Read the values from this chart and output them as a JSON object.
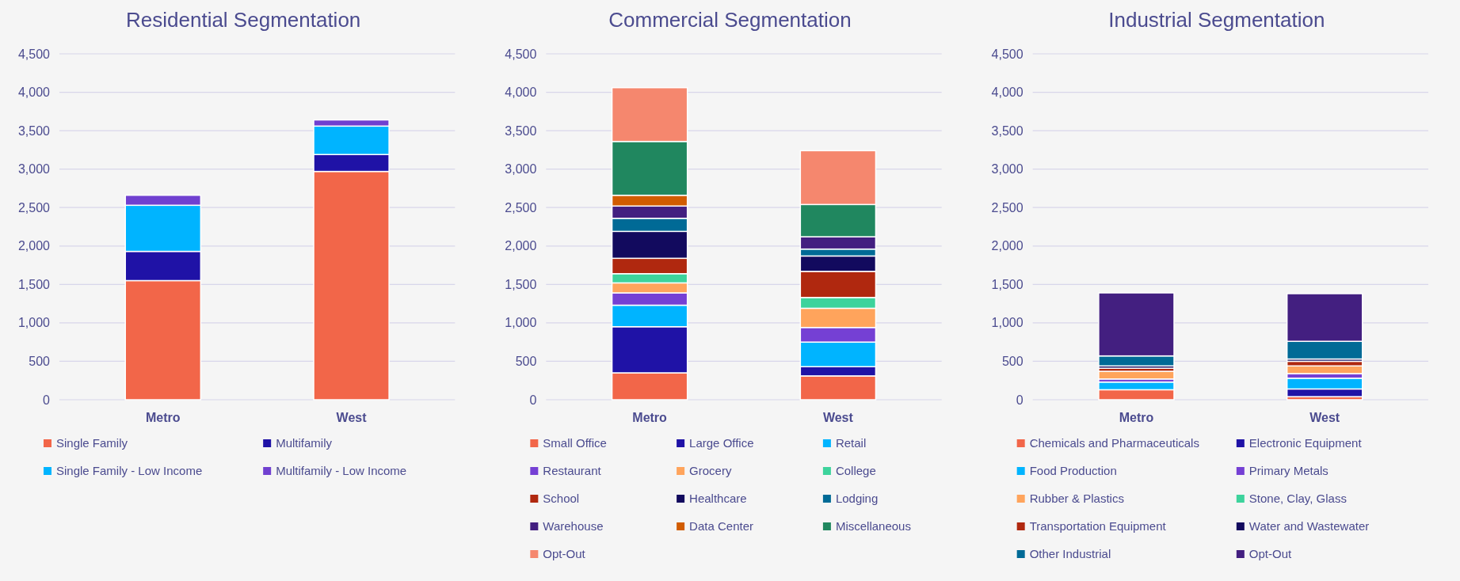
{
  "chart_data": [
    {
      "type": "bar",
      "title": "Residential Segmentation",
      "categories": [
        "Metro",
        "West"
      ],
      "stacked": true,
      "ylim": [
        0,
        4500
      ],
      "yticks": [
        {
          "value": 0,
          "label": "0"
        },
        {
          "value": 500,
          "label": "500"
        },
        {
          "value": 1000,
          "label": "1,000"
        },
        {
          "value": 1500,
          "label": "1,500"
        },
        {
          "value": 2000,
          "label": "2,000"
        },
        {
          "value": 2500,
          "label": "2,500"
        },
        {
          "value": 3000,
          "label": "3,000"
        },
        {
          "value": 3500,
          "label": "3,500"
        },
        {
          "value": 4000,
          "label": "4,000"
        },
        {
          "value": 4500,
          "label": "4,500"
        }
      ],
      "grid": "y",
      "legend": "bottom",
      "series": [
        {
          "name": "Single Family",
          "color": "#f26649",
          "values": [
            1550,
            2970
          ]
        },
        {
          "name": "Multifamily",
          "color": "#1f12a6",
          "values": [
            380,
            220
          ]
        },
        {
          "name": "Single Family - Low Income",
          "color": "#00b4ff",
          "values": [
            600,
            370
          ]
        },
        {
          "name": "Multifamily - Low Income",
          "color": "#7040d0",
          "values": [
            130,
            80
          ]
        }
      ]
    },
    {
      "type": "bar",
      "title": "Commercial Segmentation",
      "categories": [
        "Metro",
        "West"
      ],
      "stacked": true,
      "ylim": [
        0,
        4500
      ],
      "yticks": [
        {
          "value": 0,
          "label": "0"
        },
        {
          "value": 500,
          "label": "500"
        },
        {
          "value": 1000,
          "label": "1,000"
        },
        {
          "value": 1500,
          "label": "1,500"
        },
        {
          "value": 2000,
          "label": "2,000"
        },
        {
          "value": 2500,
          "label": "2,500"
        },
        {
          "value": 3000,
          "label": "3,000"
        },
        {
          "value": 3500,
          "label": "3,500"
        },
        {
          "value": 4000,
          "label": "4,000"
        },
        {
          "value": 4500,
          "label": "4,500"
        }
      ],
      "grid": "y",
      "legend": "bottom",
      "series": [
        {
          "name": "Small Office",
          "color": "#f26649",
          "values": [
            350,
            310
          ]
        },
        {
          "name": "Large Office",
          "color": "#1f12a6",
          "values": [
            600,
            120
          ]
        },
        {
          "name": "Retail",
          "color": "#00b4ff",
          "values": [
            280,
            320
          ]
        },
        {
          "name": "Restaurant",
          "color": "#7540d4",
          "values": [
            160,
            190
          ]
        },
        {
          "name": "Grocery",
          "color": "#ffa45c",
          "values": [
            130,
            250
          ]
        },
        {
          "name": "College",
          "color": "#3dd39c",
          "values": [
            120,
            140
          ]
        },
        {
          "name": "School",
          "color": "#b0280f",
          "values": [
            200,
            340
          ]
        },
        {
          "name": "Healthcare",
          "color": "#120a5e",
          "values": [
            350,
            200
          ]
        },
        {
          "name": "Lodging",
          "color": "#006a96",
          "values": [
            170,
            90
          ]
        },
        {
          "name": "Warehouse",
          "color": "#431f80",
          "values": [
            160,
            160
          ]
        },
        {
          "name": "Data Center",
          "color": "#d15c00",
          "values": [
            140,
            0
          ]
        },
        {
          "name": "Miscellaneous",
          "color": "#20875f",
          "values": [
            700,
            420
          ]
        },
        {
          "name": "Opt-Out",
          "color": "#f5876e",
          "values": [
            700,
            700
          ]
        }
      ]
    },
    {
      "type": "bar",
      "title": "Industrial Segmentation",
      "categories": [
        "Metro",
        "West"
      ],
      "stacked": true,
      "ylim": [
        0,
        4500
      ],
      "yticks": [
        {
          "value": 0,
          "label": "0"
        },
        {
          "value": 500,
          "label": "500"
        },
        {
          "value": 1000,
          "label": "1,000"
        },
        {
          "value": 1500,
          "label": "1,500"
        },
        {
          "value": 2000,
          "label": "2,000"
        },
        {
          "value": 2500,
          "label": "2,500"
        },
        {
          "value": 3000,
          "label": "3,000"
        },
        {
          "value": 3500,
          "label": "3,500"
        },
        {
          "value": 4000,
          "label": "4,000"
        },
        {
          "value": 4500,
          "label": "4,500"
        }
      ],
      "grid": "y",
      "legend": "bottom",
      "series": [
        {
          "name": "Chemicals and Pharmaceuticals",
          "color": "#f26649",
          "values": [
            130,
            40
          ]
        },
        {
          "name": "Electronic Equipment",
          "color": "#1f12a6",
          "values": [
            0,
            100
          ]
        },
        {
          "name": "Food Production",
          "color": "#00b4ff",
          "values": [
            100,
            140
          ]
        },
        {
          "name": "Primary Metals",
          "color": "#7540d4",
          "values": [
            40,
            60
          ]
        },
        {
          "name": "Rubber & Plastics",
          "color": "#ffa45c",
          "values": [
            100,
            100
          ]
        },
        {
          "name": "Stone, Clay, Glass",
          "color": "#3dd39c",
          "values": [
            null,
            null
          ]
        },
        {
          "name": "Transportation Equipment",
          "color": "#b0280f",
          "values": [
            40,
            60
          ]
        },
        {
          "name": "Water and Wastewater",
          "color": "#120a5e",
          "values": [
            30,
            30
          ]
        },
        {
          "name": "Other Industrial",
          "color": "#006a96",
          "values": [
            130,
            230
          ]
        },
        {
          "name": "Opt-Out",
          "color": "#431f80",
          "values": [
            820,
            620
          ]
        }
      ]
    }
  ]
}
